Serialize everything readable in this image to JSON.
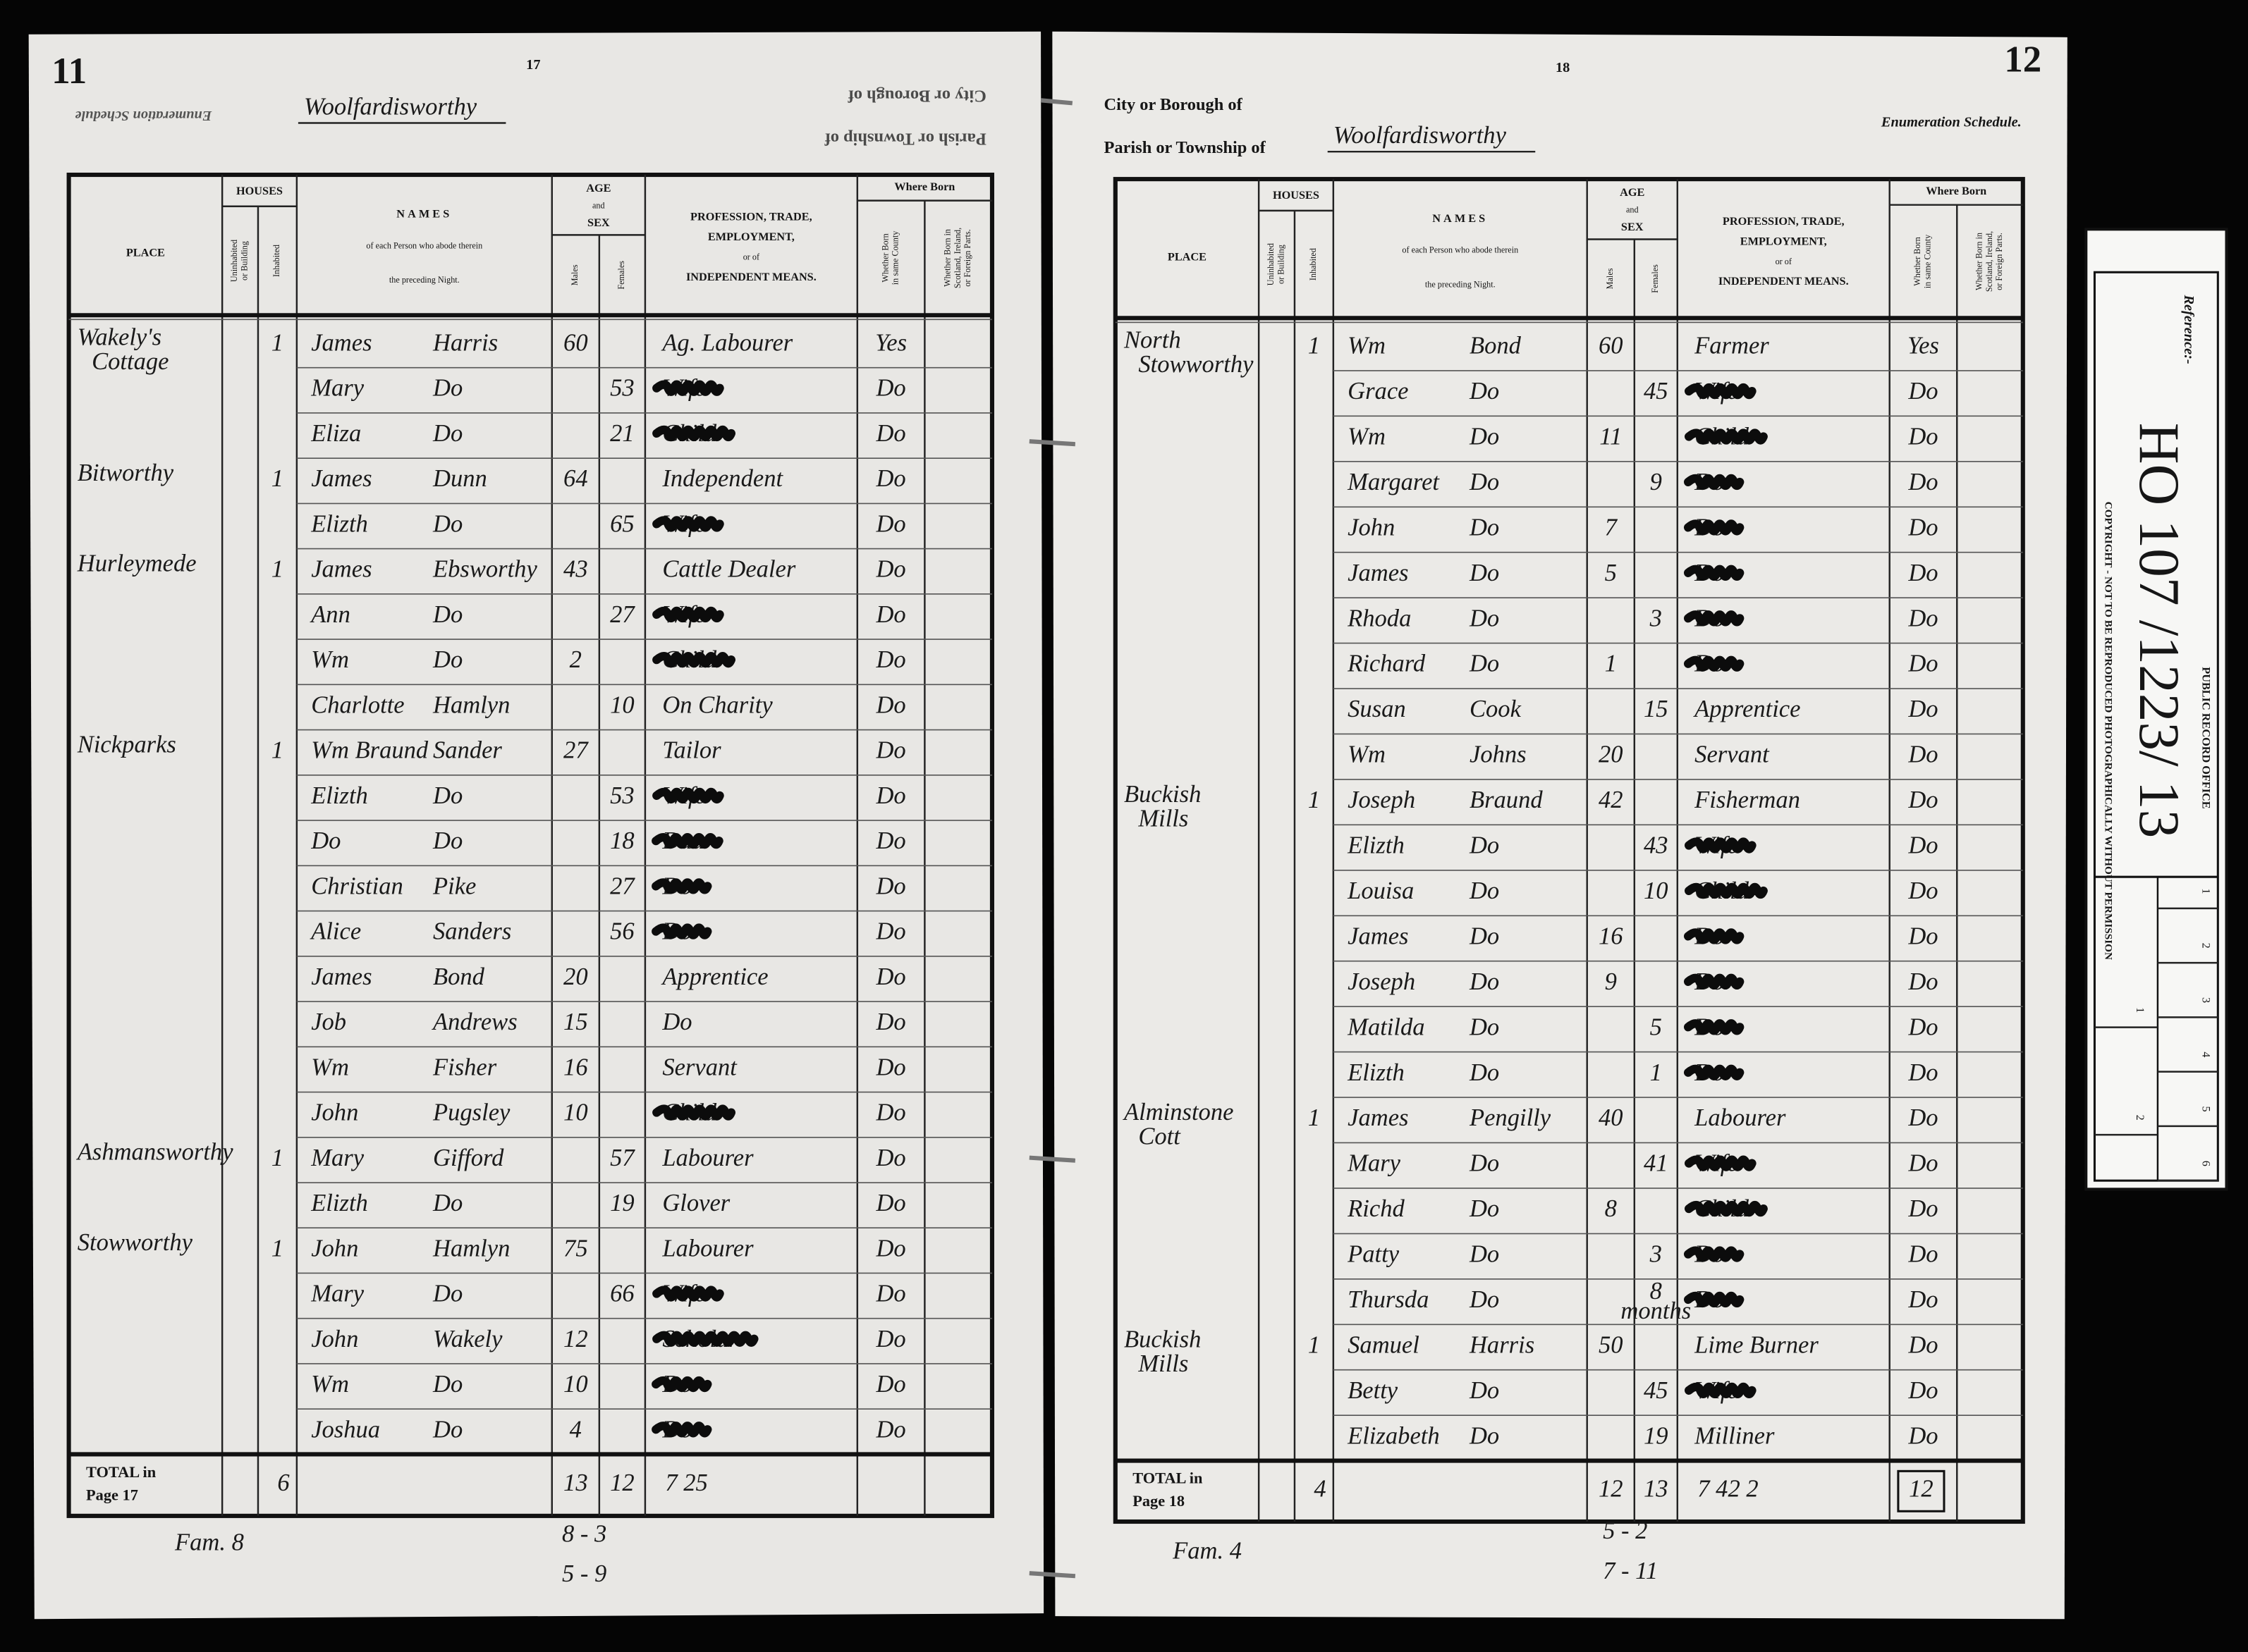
{
  "columns": {
    "place": "PLACE",
    "houses": "HOUSES",
    "uninhabited": [
      "Uninhabited",
      "or Building"
    ],
    "inhabited": [
      "Inhabited"
    ],
    "names": "NAMES",
    "names_sub": [
      "of each Person who abode therein",
      "the preceding Night."
    ],
    "age_sex": [
      "AGE",
      "and",
      "SEX"
    ],
    "males": [
      "Males"
    ],
    "females": [
      "Females"
    ],
    "profession": [
      "PROFESSION, TRADE,",
      "EMPLOYMENT,",
      "or of",
      "INDEPENDENT MEANS."
    ],
    "where_born": "Where Born",
    "born_county": [
      "Whether Born",
      "in same County"
    ],
    "born_abroad": [
      "Whether Born in",
      "Scotland, Ireland,",
      "or Foreign Parts."
    ]
  },
  "left_page": {
    "page_corner": "11",
    "page_number": "17",
    "schedule_label": "Enumeration Schedule",
    "borough_label": "City or Borough of",
    "parish_label": "Parish or Township of",
    "parish": "Woolfardisworthy",
    "rows": [
      {
        "place": [
          "Wakely's",
          "Cottage"
        ],
        "inhabited": 1,
        "forename": "James",
        "surname": "Harris",
        "male": 60,
        "profession": "Ag. Labourer",
        "born": "Yes"
      },
      {
        "forename": "Mary",
        "surname": "Do",
        "female": 53,
        "profession": "Wife",
        "struck": true,
        "born": "Do"
      },
      {
        "forename": "Eliza",
        "surname": "Do",
        "female": 21,
        "profession": "Child",
        "struck": true,
        "born": "Do"
      },
      {
        "place": [
          "Bitworthy"
        ],
        "inhabited": 1,
        "forename": "James",
        "surname": "Dunn",
        "male": 64,
        "profession": "Independent",
        "born": "Do"
      },
      {
        "forename": "Elizth",
        "surname": "Do",
        "female": 65,
        "profession": "Wife",
        "struck": true,
        "born": "Do"
      },
      {
        "place": [
          "Hurleymede"
        ],
        "inhabited": 1,
        "forename": "James",
        "surname": "Ebsworthy",
        "male": 43,
        "profession": "Cattle Dealer",
        "born": "Do"
      },
      {
        "forename": "Ann",
        "surname": "Do",
        "female": 27,
        "profession": "Wife",
        "struck": true,
        "born": "Do"
      },
      {
        "forename": "Wm",
        "surname": "Do",
        "male": 2,
        "profession": "Child",
        "struck": true,
        "born": "Do"
      },
      {
        "forename": "Charlotte",
        "surname": "Hamlyn",
        "female": 10,
        "profession": "On Charity",
        "born": "Do"
      },
      {
        "place": [
          "Nickparks"
        ],
        "inhabited": 1,
        "forename": "Wm Braund",
        "surname": "Sander",
        "male": 27,
        "profession": "Tailor",
        "born": "Do"
      },
      {
        "forename": "Elizth",
        "surname": "Do",
        "female": 53,
        "profession": "Wife",
        "struck": true,
        "born": "Do"
      },
      {
        "forename": "Do",
        "surname": "Do",
        "female": 18,
        "profession": "Dau",
        "struck": true,
        "born": "Do"
      },
      {
        "forename": "Christian",
        "surname": "Pike",
        "female": 27,
        "profession": "Do",
        "struck": true,
        "born": "Do"
      },
      {
        "forename": "Alice",
        "surname": "Sanders",
        "female": 56,
        "profession": "Do",
        "struck": true,
        "born": "Do"
      },
      {
        "forename": "James",
        "surname": "Bond",
        "male": 20,
        "profession": "Apprentice",
        "born": "Do"
      },
      {
        "forename": "Job",
        "surname": "Andrews",
        "male": 15,
        "profession": "Do",
        "born": "Do"
      },
      {
        "forename": "Wm",
        "surname": "Fisher",
        "male": 16,
        "profession": "Servant",
        "born": "Do"
      },
      {
        "forename": "John",
        "surname": "Pugsley",
        "male": 10,
        "profession": "Child",
        "struck": true,
        "born": "Do"
      },
      {
        "place": [
          "Ashmansworthy"
        ],
        "inhabited": 1,
        "forename": "Mary",
        "surname": "Gifford",
        "female": 57,
        "profession": "Labourer",
        "born": "Do"
      },
      {
        "forename": "Elizth",
        "surname": "Do",
        "female": 19,
        "profession": "Glover",
        "born": "Do"
      },
      {
        "place": [
          "Stowworthy"
        ],
        "inhabited": 1,
        "forename": "John",
        "surname": "Hamlyn",
        "male": 75,
        "profession": "Labourer",
        "born": "Do"
      },
      {
        "forename": "Mary",
        "surname": "Do",
        "female": 66,
        "profession": "Wife",
        "struck": true,
        "born": "Do"
      },
      {
        "forename": "John",
        "surname": "Wakely",
        "male": 12,
        "profession": "Scholar",
        "struck": true,
        "born": "Do"
      },
      {
        "forename": "Wm",
        "surname": "Do",
        "male": 10,
        "profession": "Do",
        "struck": true,
        "born": "Do"
      },
      {
        "forename": "Joshua",
        "surname": "Do",
        "male": 4,
        "profession": "Do",
        "struck": true,
        "born": "Do"
      }
    ],
    "total": {
      "label": "TOTAL in",
      "page": "Page 17",
      "inhabited": 6,
      "males": 13,
      "females": 12,
      "note": "7 25"
    },
    "footnotes": [
      "Fam. 8",
      "8 - 3",
      "5 - 9"
    ]
  },
  "right_page": {
    "page_corner": "12",
    "page_number": "18",
    "schedule_label": "Enumeration Schedule.",
    "borough_label": "City or Borough of",
    "parish_label": "Parish or Township of",
    "parish": "Woolfardisworthy",
    "rows": [
      {
        "place": [
          "North",
          "Stowworthy"
        ],
        "inhabited": 1,
        "forename": "Wm",
        "surname": "Bond",
        "male": 60,
        "profession": "Farmer",
        "born": "Yes"
      },
      {
        "forename": "Grace",
        "surname": "Do",
        "female": 45,
        "profession": "Wife",
        "struck": true,
        "born": "Do"
      },
      {
        "forename": "Wm",
        "surname": "Do",
        "male": 11,
        "profession": "Child",
        "struck": true,
        "born": "Do"
      },
      {
        "forename": "Margaret",
        "surname": "Do",
        "female": 9,
        "profession": "Do",
        "struck": true,
        "born": "Do"
      },
      {
        "forename": "John",
        "surname": "Do",
        "male": 7,
        "profession": "Do",
        "struck": true,
        "born": "Do"
      },
      {
        "forename": "James",
        "surname": "Do",
        "male": 5,
        "profession": "Do",
        "struck": true,
        "born": "Do"
      },
      {
        "forename": "Rhoda",
        "surname": "Do",
        "female": 3,
        "profession": "Do",
        "struck": true,
        "born": "Do"
      },
      {
        "forename": "Richard",
        "surname": "Do",
        "male": 1,
        "profession": "Do",
        "struck": true,
        "born": "Do"
      },
      {
        "forename": "Susan",
        "surname": "Cook",
        "female": 15,
        "profession": "Apprentice",
        "born": "Do"
      },
      {
        "forename": "Wm",
        "surname": "Johns",
        "male": 20,
        "profession": "Servant",
        "born": "Do"
      },
      {
        "place": [
          "Buckish",
          "Mills"
        ],
        "inhabited": 1,
        "forename": "Joseph",
        "surname": "Braund",
        "male": 42,
        "profession": "Fisherman",
        "born": "Do"
      },
      {
        "forename": "Elizth",
        "surname": "Do",
        "female": 43,
        "profession": "Wife",
        "struck": true,
        "born": "Do"
      },
      {
        "forename": "Louisa",
        "surname": "Do",
        "female": 10,
        "profession": "Child",
        "struck": true,
        "born": "Do"
      },
      {
        "forename": "James",
        "surname": "Do",
        "male": 16,
        "profession": "Do",
        "struck": true,
        "born": "Do"
      },
      {
        "forename": "Joseph",
        "surname": "Do",
        "male": 9,
        "profession": "Do",
        "struck": true,
        "born": "Do"
      },
      {
        "forename": "Matilda",
        "surname": "Do",
        "female": 5,
        "profession": "Do",
        "struck": true,
        "born": "Do"
      },
      {
        "forename": "Elizth",
        "surname": "Do",
        "female": 1,
        "profession": "Do",
        "struck": true,
        "born": "Do"
      },
      {
        "place": [
          "Alminstone",
          "Cott"
        ],
        "inhabited": 1,
        "forename": "James",
        "surname": "Pengilly",
        "male": 40,
        "profession": "Labourer",
        "born": "Do"
      },
      {
        "forename": "Mary",
        "surname": "Do",
        "female": 41,
        "profession": "Wife",
        "struck": true,
        "born": "Do"
      },
      {
        "forename": "Richd",
        "surname": "Do",
        "male": 8,
        "profession": "Child",
        "struck": true,
        "born": "Do"
      },
      {
        "forename": "Patty",
        "surname": "Do",
        "female": 3,
        "profession": "Do",
        "struck": true,
        "born": "Do"
      },
      {
        "forename": "Thursda",
        "surname": "Do",
        "female": 8,
        "female_unit": "months",
        "profession": "Do",
        "struck": true,
        "born": "Do"
      },
      {
        "place": [
          "Buckish",
          "Mills"
        ],
        "inhabited": 1,
        "forename": "Samuel",
        "surname": "Harris",
        "male": 50,
        "profession": "Lime Burner",
        "born": "Do"
      },
      {
        "forename": "Betty",
        "surname": "Do",
        "female": 45,
        "profession": "Wife",
        "struck": true,
        "born": "Do"
      },
      {
        "forename": "Elizabeth",
        "surname": "Do",
        "female": 19,
        "profession": "Milliner",
        "born": "Do"
      }
    ],
    "total": {
      "label": "TOTAL in",
      "page": "Page 18",
      "inhabited": 4,
      "males": 12,
      "females": 13,
      "note": "7 42 2",
      "boxed": "12"
    },
    "footnotes": [
      "Fam. 4",
      "5 - 2",
      "7 - 11"
    ]
  },
  "reference_card": {
    "label": "Reference:-",
    "reference": "HO 107 /1223/ 13",
    "office": "PUBLIC RECORD OFFICE",
    "copyright": "COPYRIGHT - NOT TO BE REPRODUCED PHOTOGRAPHICALLY WITHOUT PERMISSION",
    "ruler_cm": [
      1,
      2,
      3,
      4,
      5,
      6
    ],
    "ruler_in": [
      1,
      2
    ]
  }
}
